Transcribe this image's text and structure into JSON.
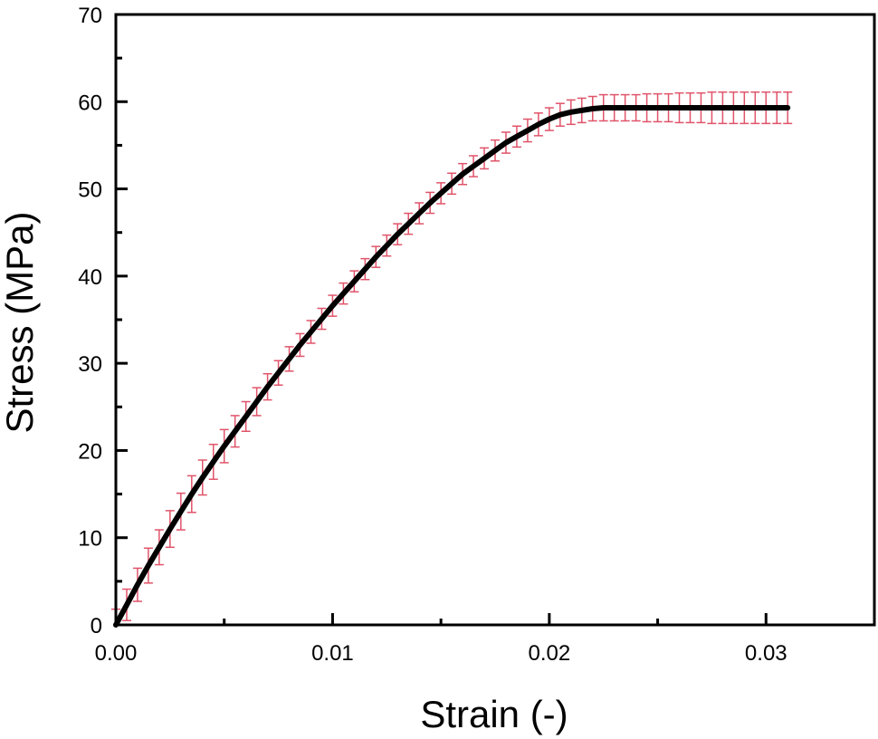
{
  "chart_data": {
    "type": "line",
    "title": "",
    "xlabel": "Strain (-)",
    "ylabel": "Stress (MPa)",
    "xlim": [
      0,
      0.035
    ],
    "ylim": [
      0,
      70
    ],
    "x_ticks": [
      0.0,
      0.01,
      0.02,
      0.03
    ],
    "x_tick_labels": [
      "0.00",
      "0.01",
      "0.02",
      "0.03"
    ],
    "x_minor_ticks": [
      0.005,
      0.015,
      0.025
    ],
    "y_ticks": [
      0,
      10,
      20,
      30,
      40,
      50,
      60,
      70
    ],
    "y_tick_labels": [
      "0",
      "10",
      "20",
      "30",
      "40",
      "50",
      "60",
      "70"
    ],
    "y_minor_ticks": [
      5,
      15,
      25,
      35,
      45,
      55,
      65
    ],
    "grid": false,
    "legend": "none",
    "colors": {
      "line": "#000000",
      "error_bars": "#e0546a",
      "frame": "#000000"
    },
    "series": [
      {
        "x": [
          0.0,
          0.0005,
          0.001,
          0.0015,
          0.002,
          0.0025,
          0.003,
          0.0035,
          0.004,
          0.0045,
          0.005,
          0.0055,
          0.006,
          0.0065,
          0.007,
          0.0075,
          0.008,
          0.0085,
          0.009,
          0.0095,
          0.01,
          0.0105,
          0.011,
          0.0115,
          0.012,
          0.0125,
          0.013,
          0.0135,
          0.014,
          0.0145,
          0.015,
          0.0155,
          0.016,
          0.0165,
          0.017,
          0.0175,
          0.018,
          0.0185,
          0.019,
          0.0195,
          0.02,
          0.0205,
          0.021,
          0.0215,
          0.022,
          0.0225,
          0.023,
          0.0235,
          0.024,
          0.0245,
          0.025,
          0.0255,
          0.026,
          0.0265,
          0.027,
          0.0275,
          0.028,
          0.0285,
          0.029,
          0.0295,
          0.03,
          0.0305,
          0.031
        ],
        "y": [
          0.0,
          2.3,
          4.6,
          6.8,
          8.9,
          11.0,
          13.0,
          15.0,
          16.9,
          18.7,
          20.5,
          22.2,
          23.9,
          25.6,
          27.3,
          28.9,
          30.5,
          32.1,
          33.6,
          35.1,
          36.6,
          38.0,
          39.4,
          40.8,
          42.2,
          43.5,
          44.8,
          46.0,
          47.2,
          48.4,
          49.5,
          50.6,
          51.7,
          52.6,
          53.5,
          54.4,
          55.3,
          56.0,
          56.7,
          57.4,
          58.0,
          58.5,
          58.8,
          59.0,
          59.2,
          59.3,
          59.3,
          59.3,
          59.3,
          59.3,
          59.3,
          59.3,
          59.3,
          59.3,
          59.3,
          59.3,
          59.3,
          59.3,
          59.3,
          59.3,
          59.3,
          59.3,
          59.3
        ],
        "error": [
          1.8,
          1.8,
          1.9,
          2.0,
          2.0,
          2.1,
          2.1,
          2.1,
          2.0,
          2.0,
          1.9,
          1.8,
          1.7,
          1.6,
          1.5,
          1.4,
          1.4,
          1.3,
          1.3,
          1.2,
          1.2,
          1.2,
          1.2,
          1.2,
          1.2,
          1.2,
          1.2,
          1.2,
          1.2,
          1.2,
          1.2,
          1.2,
          1.2,
          1.2,
          1.2,
          1.2,
          1.2,
          1.2,
          1.3,
          1.3,
          1.3,
          1.3,
          1.4,
          1.4,
          1.4,
          1.5,
          1.5,
          1.5,
          1.5,
          1.6,
          1.6,
          1.6,
          1.7,
          1.7,
          1.7,
          1.8,
          1.8,
          1.8,
          1.8,
          1.8,
          1.8,
          1.8,
          1.8
        ]
      }
    ]
  }
}
